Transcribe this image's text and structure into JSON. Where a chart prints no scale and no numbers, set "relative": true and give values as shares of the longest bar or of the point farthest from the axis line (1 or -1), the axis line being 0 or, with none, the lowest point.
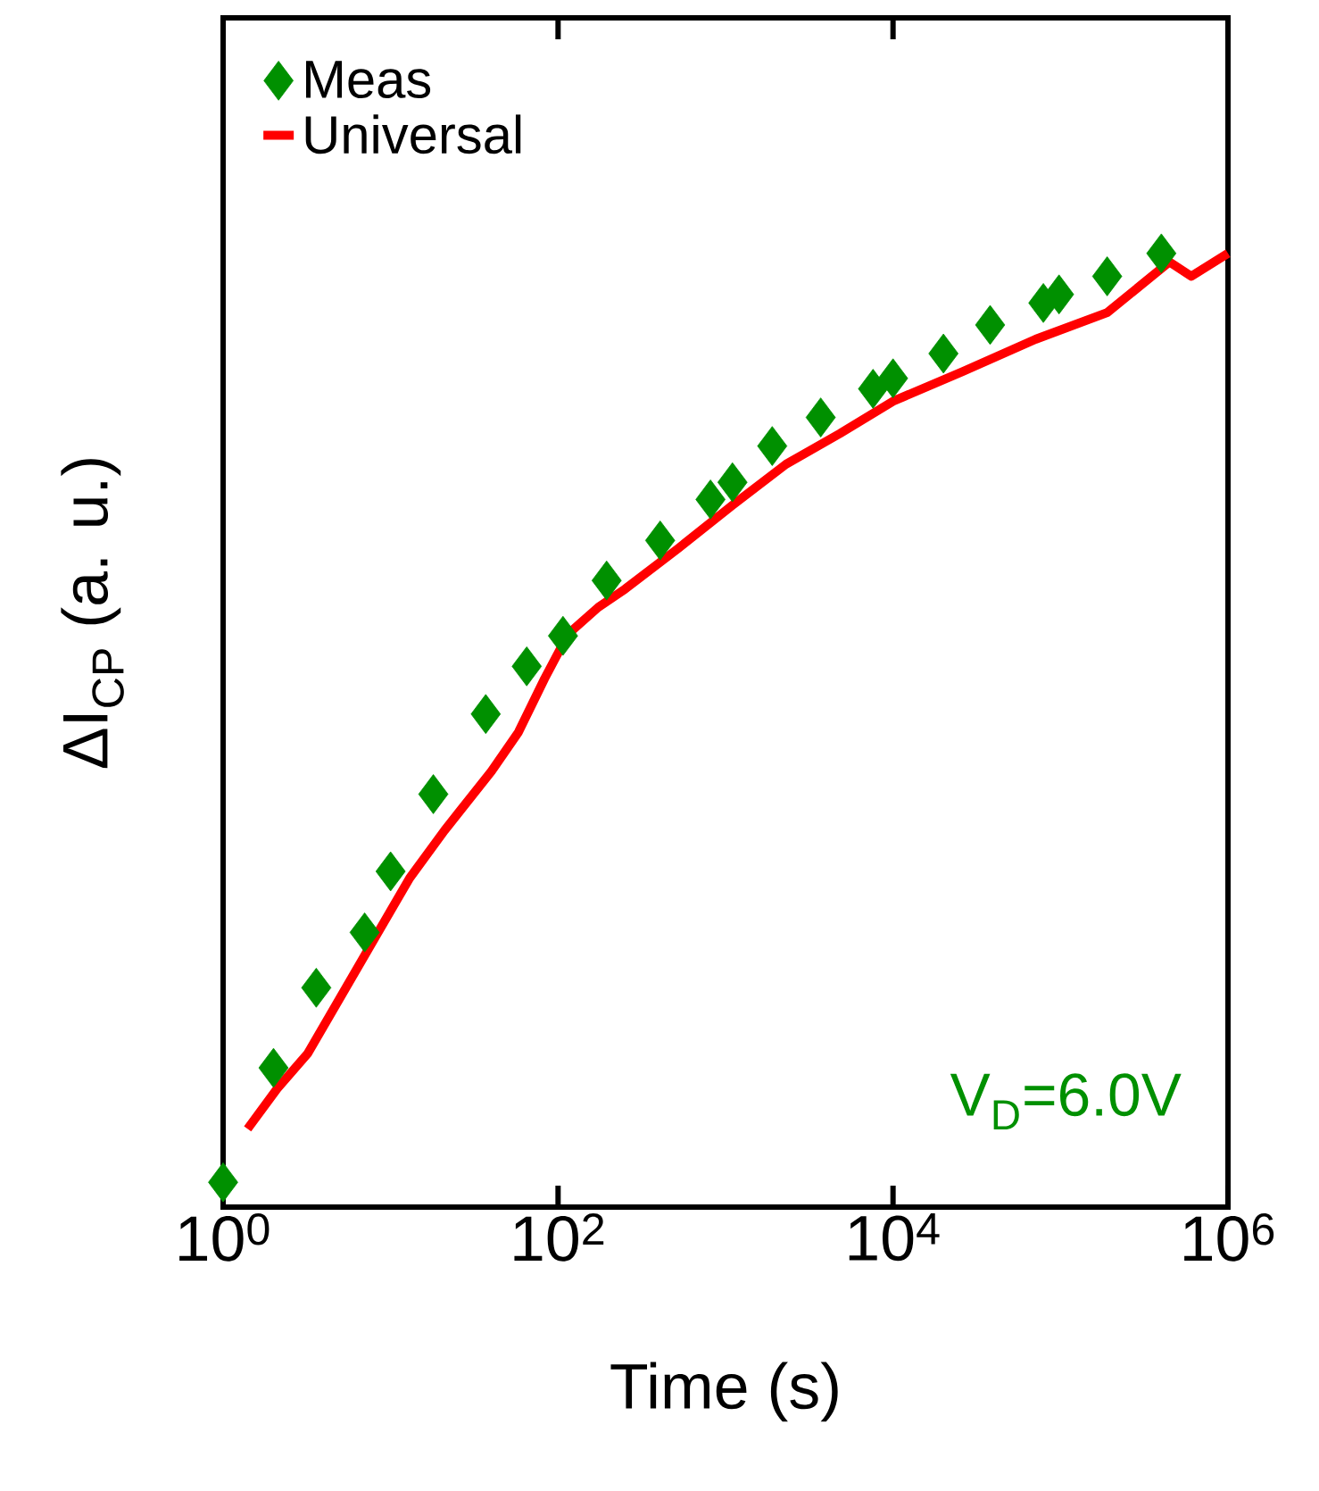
{
  "chart_data": {
    "type": "line",
    "relative": true,
    "xlabel": "Time (s)",
    "ylabel": "ΔI$_{CP}$ (a. u.)",
    "log": "x",
    "xlim": [
      1,
      1000000
    ],
    "xticks": [
      {
        "value": 1,
        "label": "10$^{0}$"
      },
      {
        "value": 100,
        "label": "10$^{2}$"
      },
      {
        "value": 10000,
        "label": "10$^{4}$"
      },
      {
        "value": 1000000,
        "label": "10$^{6}$"
      }
    ],
    "legend": "top left",
    "annotations": [
      "V$_{D}$=6.0V"
    ],
    "series": [
      {
        "name": "Meas",
        "type": "scatter",
        "marker": "diamond",
        "color": "#009000",
        "x": [
          1,
          2,
          3.6,
          7,
          10,
          18,
          37,
          65,
          107,
          195,
          407,
          813,
          1100,
          1900,
          3700,
          7600,
          10000,
          20000,
          38000,
          79000,
          98000,
          190000,
          400000
        ],
        "values": [
          0.026,
          0.146,
          0.23,
          0.288,
          0.352,
          0.433,
          0.517,
          0.567,
          0.599,
          0.657,
          0.699,
          0.742,
          0.76,
          0.798,
          0.828,
          0.858,
          0.869,
          0.895,
          0.925,
          0.948,
          0.957,
          0.976,
          1.0
        ]
      },
      {
        "name": "Universal",
        "line_style": "solid",
        "color": "#ff0000",
        "x": [
          1.4,
          2.1,
          3.2,
          4.9,
          8.1,
          13,
          21,
          40,
          58,
          83,
          115,
          174,
          251,
          525,
          1100,
          2300,
          4800,
          10000,
          26000,
          71000,
          190000,
          447000,
          603000,
          794000,
          1000000
        ],
        "values": [
          0.082,
          0.124,
          0.161,
          0.217,
          0.283,
          0.345,
          0.395,
          0.457,
          0.498,
          0.554,
          0.601,
          0.629,
          0.648,
          0.691,
          0.736,
          0.779,
          0.811,
          0.845,
          0.876,
          0.91,
          0.938,
          0.991,
          0.976,
          0.989,
          1.0
        ]
      }
    ]
  }
}
